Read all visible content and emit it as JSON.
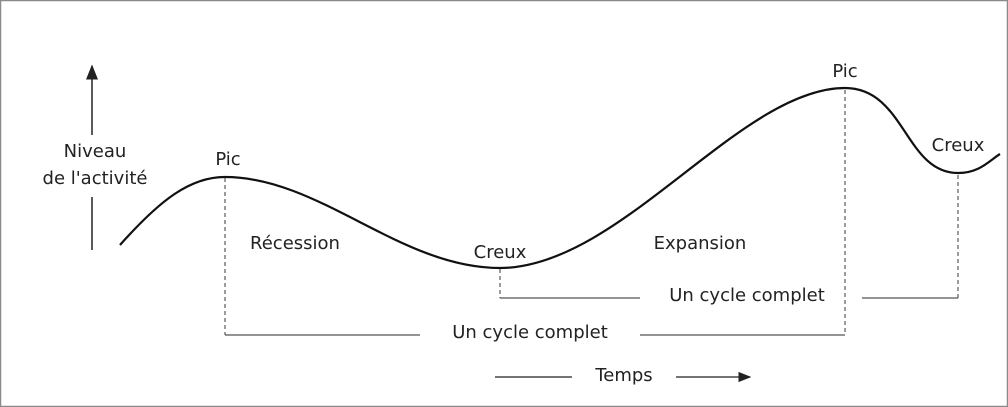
{
  "y_axis_label": [
    "Niveau",
    "de l'activité"
  ],
  "x_axis_label": "Temps",
  "peaks": [
    "Pic",
    "Pic"
  ],
  "troughs": [
    "Creux",
    "Creux"
  ],
  "phases": [
    "Récession",
    "Expansion"
  ],
  "cycles": [
    "Un cycle complet",
    "Un cycle complet"
  ]
}
